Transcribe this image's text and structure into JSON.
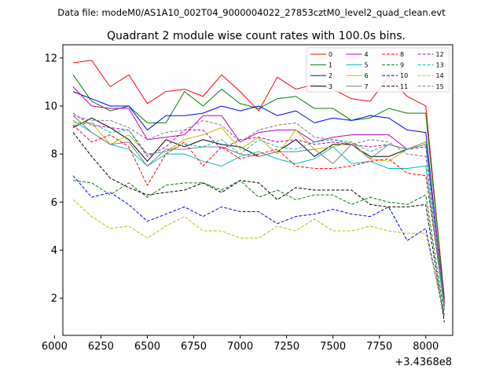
{
  "chart_data": {
    "type": "line",
    "suptitle": "Data file: modeM0/AS1A10_002T04_9000004022_27853cztM0_level2_quad_clean.evt",
    "title": "Quadrant 2 module wise count rates with 100.0s bins.",
    "xlabel": "",
    "ylabel": "",
    "x_offset_label": "+3.4368e8",
    "xlim": [
      6045,
      8145
    ],
    "ylim": [
      0.45,
      12.55
    ],
    "xticks": [
      6000,
      6250,
      6500,
      6750,
      7000,
      7250,
      7500,
      7750,
      8000
    ],
    "yticks": [
      2,
      4,
      6,
      8,
      10,
      12
    ],
    "grid": false,
    "legend_position": "top-right",
    "legend_columns": 4,
    "x": [
      6100,
      6200,
      6300,
      6400,
      6500,
      6600,
      6700,
      6800,
      6900,
      7000,
      7100,
      7200,
      7300,
      7400,
      7500,
      7600,
      7700,
      7800,
      7900,
      8000,
      8100
    ],
    "series": [
      {
        "name": "0",
        "color": "#ff0000",
        "dash": "solid",
        "values": [
          11.8,
          11.9,
          10.8,
          11.3,
          10.1,
          10.6,
          10.7,
          10.4,
          11.3,
          10.6,
          9.8,
          11.2,
          10.7,
          10.9,
          10.7,
          10.3,
          10.2,
          11.2,
          10.4,
          10.0,
          2.0
        ]
      },
      {
        "name": "1",
        "color": "#008000",
        "dash": "solid",
        "values": [
          11.3,
          10.2,
          9.8,
          10.0,
          9.3,
          9.3,
          10.6,
          10.0,
          10.7,
          10.1,
          9.9,
          10.3,
          10.4,
          9.9,
          9.9,
          9.4,
          9.5,
          9.9,
          9.7,
          9.7,
          2.0
        ]
      },
      {
        "name": "2",
        "color": "#0000ff",
        "dash": "solid",
        "values": [
          10.6,
          10.3,
          10.0,
          10.0,
          9.0,
          9.6,
          9.6,
          9.7,
          10.0,
          9.8,
          10.0,
          9.6,
          9.8,
          9.3,
          9.5,
          9.4,
          9.6,
          9.5,
          9.0,
          8.9,
          1.7
        ]
      },
      {
        "name": "3",
        "color": "#000000",
        "dash": "solid",
        "values": [
          9.1,
          9.5,
          9.1,
          8.6,
          7.7,
          8.6,
          8.3,
          8.6,
          8.4,
          8.3,
          7.9,
          8.1,
          8.6,
          7.9,
          8.4,
          8.4,
          7.9,
          7.9,
          8.2,
          8.5,
          1.8
        ]
      },
      {
        "name": "4",
        "color": "#bf00bf",
        "dash": "solid",
        "values": [
          10.8,
          10.0,
          9.9,
          9.9,
          8.6,
          8.7,
          8.8,
          9.6,
          9.6,
          8.5,
          8.9,
          9.0,
          9.0,
          8.5,
          8.7,
          8.8,
          8.8,
          8.8,
          8.2,
          8.5,
          1.9
        ]
      },
      {
        "name": "5",
        "color": "#00bfbf",
        "dash": "solid",
        "values": [
          9.4,
          8.9,
          8.4,
          8.2,
          7.5,
          8.0,
          8.0,
          7.7,
          7.5,
          7.9,
          8.1,
          7.8,
          7.6,
          7.8,
          8.3,
          7.6,
          7.7,
          7.4,
          7.4,
          7.5,
          1.5
        ]
      },
      {
        "name": "6",
        "color": "#bfbf00",
        "dash": "solid",
        "values": [
          9.3,
          9.3,
          8.4,
          8.8,
          8.0,
          8.1,
          8.6,
          8.8,
          9.1,
          8.2,
          8.7,
          8.0,
          9.0,
          8.2,
          8.3,
          8.5,
          7.8,
          7.7,
          8.2,
          8.5,
          1.6
        ]
      },
      {
        "name": "7",
        "color": "#808080",
        "dash": "solid",
        "values": [
          9.6,
          8.9,
          8.4,
          8.5,
          7.5,
          8.2,
          8.2,
          8.3,
          8.3,
          8.0,
          7.9,
          8.1,
          8.1,
          8.2,
          7.6,
          8.4,
          7.8,
          8.4,
          8.2,
          8.4,
          1.7
        ]
      },
      {
        "name": "8",
        "color": "#ff0000",
        "dash": "dashed",
        "values": [
          9.2,
          8.5,
          8.8,
          8.3,
          6.7,
          8.0,
          8.5,
          7.5,
          8.3,
          7.8,
          8.0,
          8.2,
          7.5,
          7.4,
          7.4,
          7.5,
          7.7,
          7.8,
          7.2,
          7.1,
          1.8
        ]
      },
      {
        "name": "9",
        "color": "#008000",
        "dash": "dashed",
        "values": [
          6.9,
          6.8,
          6.3,
          6.8,
          6.2,
          6.7,
          6.8,
          6.8,
          6.5,
          6.9,
          6.2,
          6.5,
          6.1,
          6.3,
          6.3,
          5.9,
          6.2,
          6.0,
          5.9,
          6.3,
          1.3
        ]
      },
      {
        "name": "10",
        "color": "#0000ff",
        "dash": "dashed",
        "values": [
          7.1,
          6.2,
          6.4,
          5.9,
          5.2,
          5.5,
          5.8,
          5.4,
          5.8,
          5.6,
          5.6,
          5.1,
          5.4,
          5.5,
          5.7,
          5.5,
          5.4,
          5.8,
          4.4,
          4.9,
          1.2
        ]
      },
      {
        "name": "11",
        "color": "#000000",
        "dash": "dashed",
        "values": [
          8.9,
          7.9,
          7.0,
          6.6,
          6.3,
          6.4,
          6.5,
          6.8,
          6.4,
          6.9,
          6.8,
          6.1,
          6.6,
          6.5,
          6.5,
          6.5,
          5.9,
          5.8,
          5.8,
          5.9,
          1.0
        ]
      },
      {
        "name": "12",
        "color": "#bf00bf",
        "dash": "dashed",
        "values": [
          9.7,
          9.2,
          9.1,
          9.0,
          7.9,
          8.3,
          9.0,
          9.0,
          8.2,
          8.6,
          8.7,
          8.5,
          8.6,
          8.4,
          8.5,
          8.4,
          8.3,
          8.4,
          8.2,
          8.3,
          1.9
        ]
      },
      {
        "name": "13",
        "color": "#00bfbf",
        "dash": "dashed",
        "values": [
          9.2,
          9.3,
          8.9,
          9.0,
          8.0,
          8.1,
          8.4,
          8.3,
          8.6,
          8.0,
          8.6,
          8.3,
          8.2,
          8.5,
          8.6,
          8.5,
          8.1,
          8.4,
          8.2,
          8.4,
          1.5
        ]
      },
      {
        "name": "14",
        "color": "#bfbf00",
        "dash": "dashed",
        "values": [
          6.1,
          5.4,
          4.9,
          5.0,
          4.5,
          5.0,
          5.4,
          4.8,
          4.8,
          4.5,
          4.5,
          5.0,
          4.8,
          5.3,
          4.8,
          4.8,
          5.0,
          4.8,
          4.7,
          4.7,
          1.3
        ]
      },
      {
        "name": "15",
        "color": "#808080",
        "dash": "dashed",
        "values": [
          9.6,
          9.4,
          9.4,
          9.1,
          8.6,
          8.9,
          9.0,
          9.4,
          9.2,
          8.5,
          9.0,
          9.2,
          9.3,
          8.7,
          8.6,
          8.4,
          8.6,
          8.5,
          8.0,
          7.9,
          1.6
        ]
      }
    ]
  }
}
